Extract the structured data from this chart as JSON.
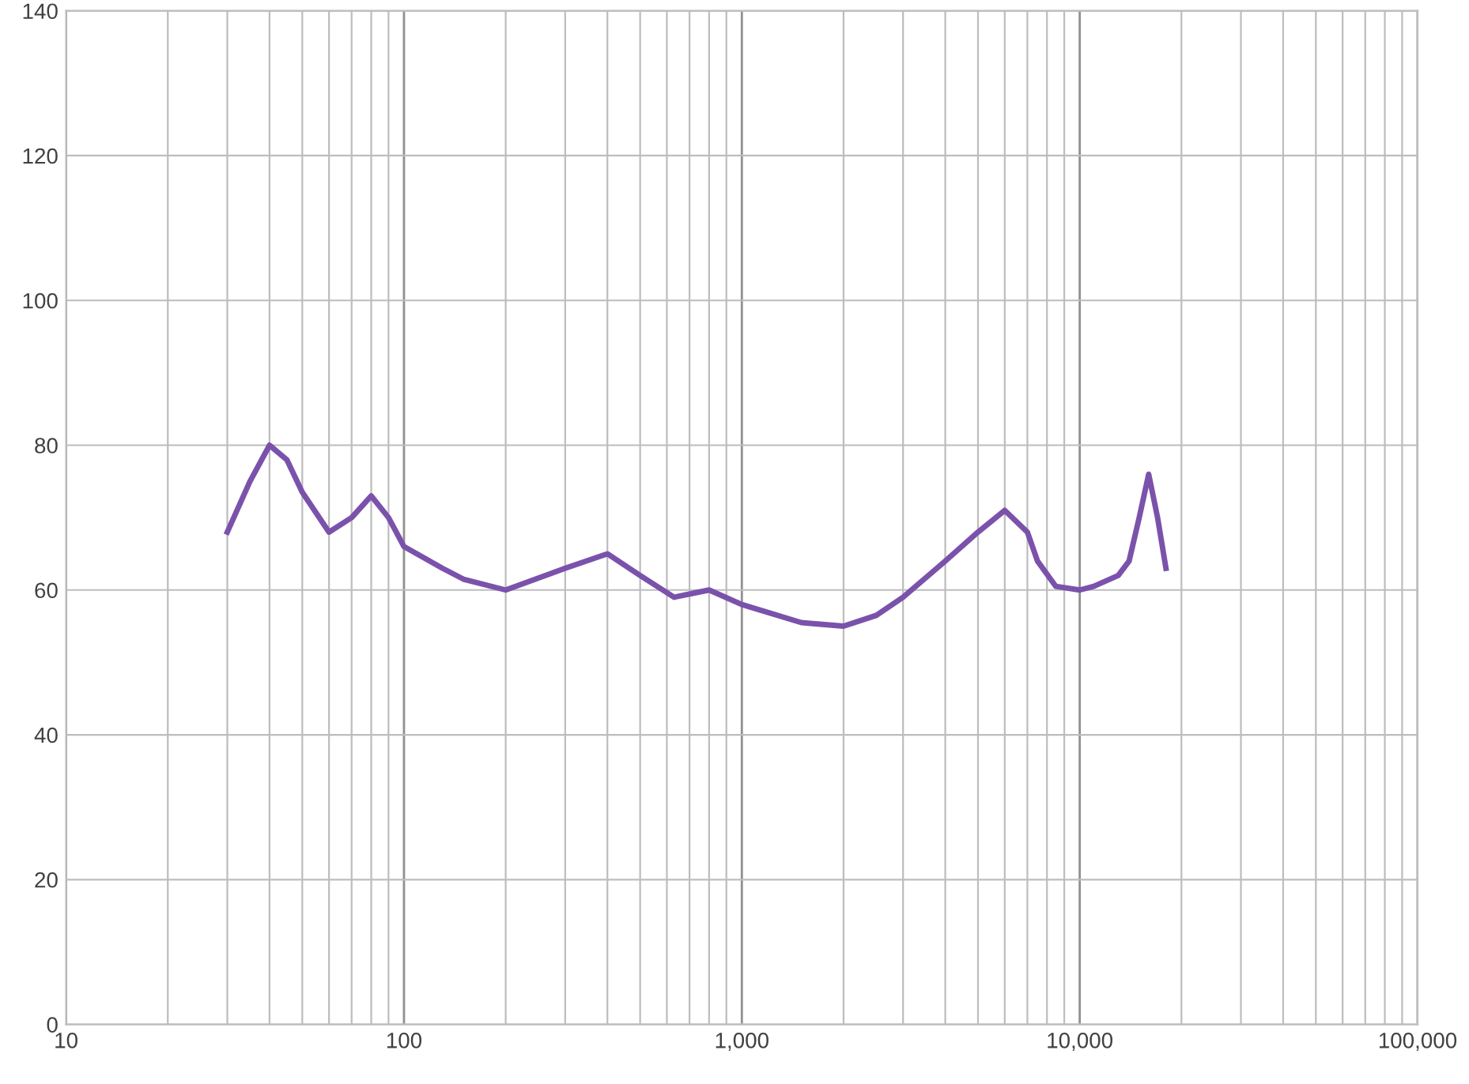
{
  "chart_data": {
    "type": "line",
    "log": "x",
    "x": [
      30,
      35,
      40,
      45,
      50,
      60,
      70,
      80,
      90,
      100,
      130,
      150,
      200,
      300,
      400,
      500,
      630,
      800,
      1000,
      1500,
      2000,
      2500,
      3000,
      4000,
      5000,
      6000,
      7000,
      7500,
      8500,
      10000,
      11000,
      13000,
      14000,
      15000,
      16000,
      17000,
      18000
    ],
    "series": [
      {
        "color": "#7b52ab",
        "values": [
          68,
          75,
          80,
          78,
          73.5,
          68,
          70,
          73,
          70,
          66,
          63,
          61.5,
          60,
          63,
          65,
          62,
          59,
          60,
          58,
          55.5,
          55,
          56.5,
          59,
          64,
          68,
          71,
          68,
          64,
          60.5,
          60,
          60.5,
          62,
          64,
          70,
          76,
          70,
          63
        ]
      }
    ],
    "xlim": [
      10,
      100000
    ],
    "xticks": [
      10,
      100,
      {
        "value": 1000,
        "label": "1,000"
      },
      {
        "value": 10000,
        "label": "10,000"
      },
      {
        "value": 100000,
        "label": "100,000"
      }
    ],
    "ylim": [
      0,
      140
    ],
    "yticks": [
      0,
      20,
      40,
      60,
      80,
      100,
      120,
      140
    ],
    "grid": true,
    "marker": "none",
    "line_style": "solid"
  }
}
